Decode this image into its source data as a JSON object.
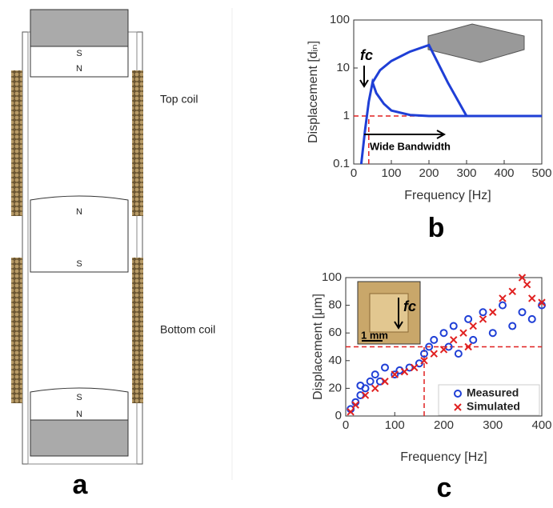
{
  "diagram": {
    "panel_label": "a",
    "top_coil": "Top coil",
    "bottom_coil": "Bottom coil",
    "magnets": [
      {
        "top": "S",
        "bottom": "N"
      },
      {
        "top": "N",
        "bottom": "S"
      },
      {
        "top": "S",
        "bottom": "N"
      }
    ]
  },
  "chart_data": [
    {
      "type": "line",
      "panel_label": "b",
      "x_label": "Frequency [Hz]",
      "y_label": "Displacement [dᵢₙ]",
      "annotations": [
        "fc",
        "Wide Bandwidth"
      ],
      "xlim": [
        0,
        500
      ],
      "xticks": [
        0,
        100,
        200,
        300,
        400,
        500
      ],
      "ylim": [
        0.1,
        100
      ],
      "yticks": [
        0.1,
        1,
        10,
        100
      ],
      "yscale": "log",
      "series": [
        {
          "color": "#1f3fd6",
          "x": [
            20,
            30,
            40,
            50,
            60,
            80,
            100,
            150,
            200,
            300,
            400,
            500
          ],
          "values": [
            0.1,
            0.5,
            2,
            5,
            3,
            1.8,
            1.3,
            1.05,
            1,
            1,
            1,
            1
          ]
        },
        {
          "color": "#1f3fd6",
          "x": [
            50,
            70,
            100,
            150,
            200,
            250,
            300
          ],
          "values": [
            5,
            9,
            14,
            22,
            30,
            5,
            1
          ]
        }
      ],
      "reference_lines": [
        {
          "axis": "y",
          "value": 1,
          "color": "#e02020"
        },
        {
          "axis": "x",
          "value": 40,
          "color": "#e02020"
        }
      ]
    },
    {
      "type": "scatter",
      "panel_label": "c",
      "x_label": "Frequency [Hz]",
      "y_label": "Displacement [μm]",
      "annotations": [
        "fc",
        "1 mm"
      ],
      "xlim": [
        0,
        400
      ],
      "xticks": [
        0,
        100,
        200,
        300,
        400
      ],
      "ylim": [
        0,
        100
      ],
      "yticks": [
        0,
        20,
        40,
        60,
        80,
        100
      ],
      "series": [
        {
          "name": "Measured",
          "color": "#1f3fd6",
          "marker": "o",
          "x": [
            10,
            20,
            30,
            30,
            40,
            50,
            60,
            70,
            80,
            100,
            110,
            130,
            150,
            160,
            170,
            180,
            200,
            210,
            220,
            230,
            250,
            260,
            280,
            300,
            320,
            340,
            360,
            380,
            400
          ],
          "values": [
            5,
            10,
            15,
            22,
            20,
            25,
            30,
            25,
            35,
            30,
            33,
            35,
            38,
            45,
            50,
            55,
            60,
            50,
            65,
            45,
            70,
            55,
            75,
            60,
            80,
            65,
            75,
            70,
            80
          ]
        },
        {
          "name": "Simulated",
          "color": "#e02020",
          "marker": "x",
          "x": [
            10,
            20,
            40,
            60,
            80,
            100,
            120,
            140,
            160,
            180,
            200,
            220,
            240,
            250,
            260,
            280,
            300,
            320,
            340,
            360,
            370,
            380,
            400
          ],
          "values": [
            3,
            8,
            15,
            20,
            25,
            30,
            32,
            35,
            40,
            45,
            48,
            55,
            60,
            50,
            65,
            70,
            75,
            85,
            90,
            100,
            95,
            85,
            82
          ]
        }
      ],
      "reference_lines": [
        {
          "axis": "y",
          "value": 50,
          "color": "#e02020"
        },
        {
          "axis": "x",
          "value": 160,
          "color": "#e02020"
        }
      ]
    }
  ]
}
